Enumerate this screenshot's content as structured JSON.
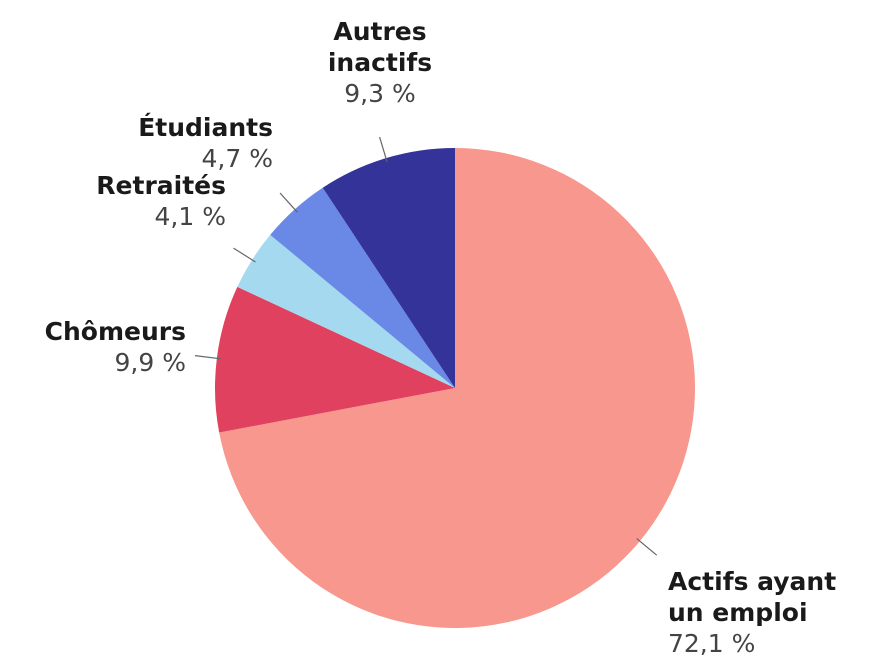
{
  "chart_data": {
    "type": "pie",
    "categories": [
      "Actifs ayant un emploi",
      "Chômeurs",
      "Retraités",
      "Étudiants",
      "Autres inactifs"
    ],
    "values": [
      72.1,
      9.9,
      4.1,
      4.7,
      9.3
    ],
    "value_labels": [
      "72,1 %",
      "9,9 %",
      "4,1 %",
      "4,7 %",
      "9,3 %"
    ],
    "colors": [
      "#f8978d",
      "#e0415f",
      "#a4d9ef",
      "#6a88e6",
      "#333399"
    ]
  }
}
